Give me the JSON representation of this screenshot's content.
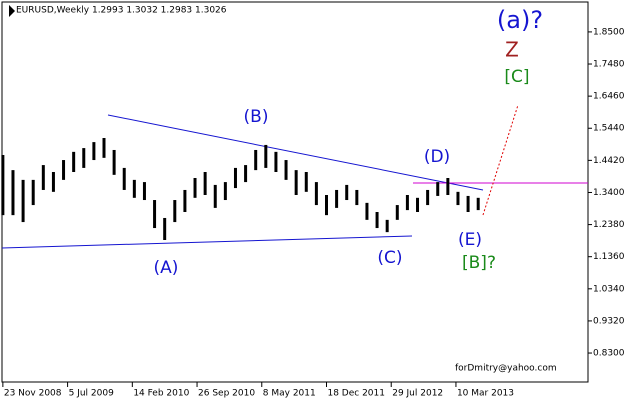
{
  "chart_data": {
    "type": "ohlc",
    "title": "EURUSD,Weekly  1.2993 1.3032 1.2983 1.3026",
    "footer": "forDmitry@yahoo.com",
    "color": "#000000",
    "x": [
      "2008-11-23",
      "2008-12-28",
      "2009-02-01",
      "2009-03-08",
      "2009-04-12",
      "2009-05-17",
      "2009-06-21",
      "2009-07-26",
      "2009-08-30",
      "2009-10-04",
      "2009-11-08",
      "2009-12-13",
      "2010-01-17",
      "2010-02-21",
      "2010-03-28",
      "2010-05-02",
      "2010-06-06",
      "2010-07-11",
      "2010-08-15",
      "2010-09-19",
      "2010-10-24",
      "2010-11-28",
      "2011-01-02",
      "2011-02-06",
      "2011-03-13",
      "2011-04-17",
      "2011-05-22",
      "2011-06-26",
      "2011-07-31",
      "2011-09-04",
      "2011-10-09",
      "2011-11-13",
      "2011-12-18",
      "2012-01-22",
      "2012-02-26",
      "2012-04-01",
      "2012-05-06",
      "2012-06-10",
      "2012-07-15",
      "2012-08-19",
      "2012-09-23",
      "2012-10-28",
      "2012-12-02",
      "2013-01-06",
      "2013-02-10",
      "2013-03-17",
      "2013-04-21",
      "2013-05-26"
    ],
    "high": [
      1.459,
      1.411,
      1.38,
      1.38,
      1.427,
      1.405,
      1.443,
      1.469,
      1.481,
      1.5,
      1.513,
      1.475,
      1.418,
      1.38,
      1.373,
      1.316,
      1.259,
      1.316,
      1.348,
      1.386,
      1.405,
      1.364,
      1.373,
      1.418,
      1.427,
      1.475,
      1.491,
      1.469,
      1.443,
      1.411,
      1.405,
      1.373,
      1.332,
      1.348,
      1.364,
      1.348,
      1.307,
      1.278,
      1.253,
      1.3,
      1.332,
      1.323,
      1.348,
      1.373,
      1.386,
      1.342,
      1.329,
      1.323
    ],
    "low": [
      1.268,
      1.268,
      1.246,
      1.3,
      1.348,
      1.342,
      1.38,
      1.405,
      1.418,
      1.443,
      1.45,
      1.396,
      1.348,
      1.323,
      1.316,
      1.227,
      1.189,
      1.246,
      1.278,
      1.323,
      1.332,
      1.291,
      1.316,
      1.354,
      1.373,
      1.411,
      1.418,
      1.405,
      1.38,
      1.332,
      1.342,
      1.3,
      1.268,
      1.291,
      1.316,
      1.3,
      1.253,
      1.227,
      1.214,
      1.253,
      1.284,
      1.278,
      1.3,
      1.329,
      1.332,
      1.3,
      1.278,
      1.284
    ],
    "xlim": [
      "2008-11-20",
      "2014-06-10"
    ],
    "xticks": [
      {
        "value": "2008-11-23",
        "label": "23 Nov 2008"
      },
      {
        "value": "2009-07-05",
        "label": "5 Jul 2009"
      },
      {
        "value": "2010-02-14",
        "label": "14 Feb 2010"
      },
      {
        "value": "2010-09-26",
        "label": "26 Sep 2010"
      },
      {
        "value": "2011-05-08",
        "label": "8 May 2011"
      },
      {
        "value": "2011-12-18",
        "label": "18 Dec 2011"
      },
      {
        "value": "2012-07-29",
        "label": "29 Jul 2012"
      },
      {
        "value": "2013-03-10",
        "label": "10 Mar 2013"
      }
    ],
    "ylim": [
      0.738,
      1.945
    ],
    "yticks": [
      {
        "value": 1.85,
        "label": "1.8500"
      },
      {
        "value": 1.748,
        "label": "1.7480"
      },
      {
        "value": 1.646,
        "label": "1.6460"
      },
      {
        "value": 1.544,
        "label": "1.5440"
      },
      {
        "value": 1.442,
        "label": "1.4420"
      },
      {
        "value": 1.34,
        "label": "1.3400"
      },
      {
        "value": 1.238,
        "label": "1.2380"
      },
      {
        "value": 1.136,
        "label": "1.1360"
      },
      {
        "value": 1.034,
        "label": "1.0340"
      },
      {
        "value": 0.932,
        "label": "0.9320"
      },
      {
        "value": 0.83,
        "label": "0.8300"
      }
    ],
    "annotations": [
      "(a)?",
      "Z",
      "[C]",
      "(B)",
      "(D)",
      "(A)",
      "(C)",
      "(E)",
      "[B]?"
    ]
  }
}
